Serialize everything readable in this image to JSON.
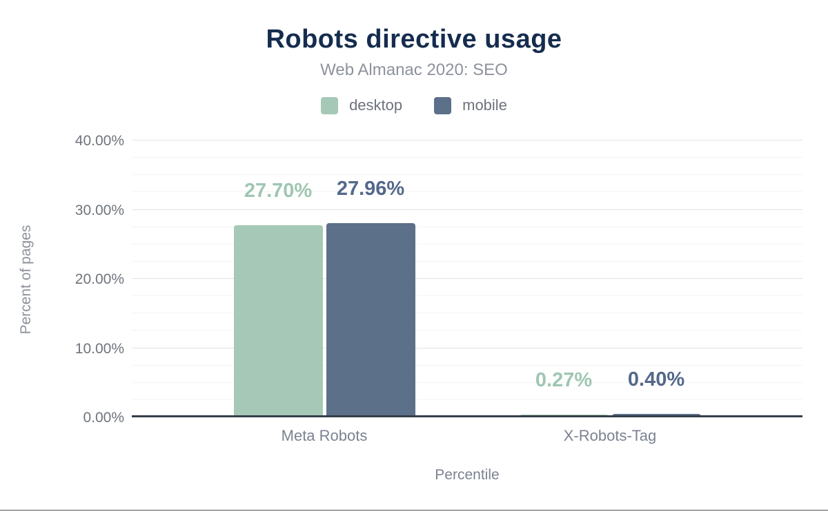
{
  "figure": {
    "title": "Robots directive usage",
    "subtitle": "Web Almanac 2020: SEO"
  },
  "chart_data": {
    "type": "bar",
    "title": "Robots directive usage",
    "subtitle": "Web Almanac 2020: SEO",
    "categories": [
      "Meta Robots",
      "X-Robots-Tag"
    ],
    "series": [
      {
        "name": "desktop",
        "values": [
          27.7,
          0.27
        ],
        "value_labels": [
          "27.70%",
          "0.27%"
        ],
        "color": "#a6c9b7",
        "label_color": "#9fc6b2"
      },
      {
        "name": "mobile",
        "values": [
          27.96,
          0.4
        ],
        "value_labels": [
          "27.96%",
          "0.40%"
        ],
        "color": "#5d7089",
        "label_color": "#53688b"
      }
    ],
    "xlabel": "Percentile",
    "ylabel": "Percent of pages",
    "ylim": [
      0,
      40
    ],
    "yticks": [
      {
        "value": 0,
        "label": "0.00%"
      },
      {
        "value": 10,
        "label": "10.00%"
      },
      {
        "value": 20,
        "label": "20.00%"
      },
      {
        "value": 30,
        "label": "30.00%"
      },
      {
        "value": 40,
        "label": "40.00%"
      }
    ],
    "grid": {
      "major_step": 10,
      "minor_step": 2.5,
      "grid_on": true
    },
    "legend_position": "top",
    "axis_line_color": "#343e49"
  }
}
